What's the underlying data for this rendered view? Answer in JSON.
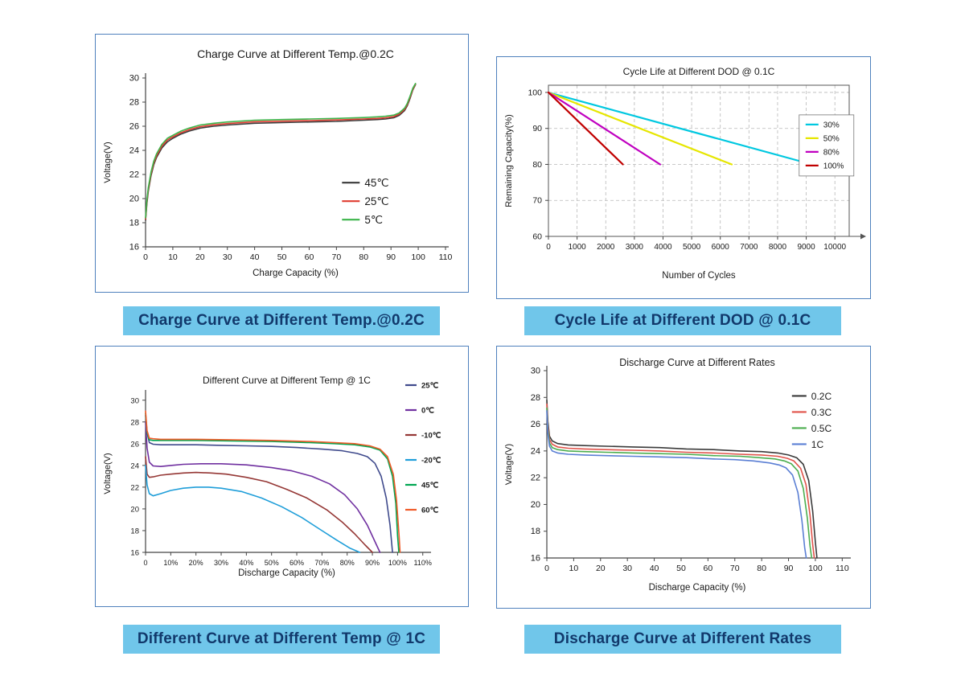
{
  "theme": {
    "caption_bg": "#70c6ea",
    "caption_text": "#11386b",
    "panel_border": "#4f81bd",
    "axis_color": "#444444",
    "grid_color": "#b8b8b8"
  },
  "captions": [
    {
      "text": "Charge Curve at Different Temp.@0.2C"
    },
    {
      "text": "Cycle Life at Different DOD @ 0.1C"
    },
    {
      "text": "Different Curve at Different Temp @ 1C"
    },
    {
      "text": "Discharge Curve at Different Rates"
    }
  ],
  "chart_data": [
    {
      "type": "line",
      "title": "Charge Curve at Different Temp.@0.2C",
      "xlabel": "Charge Capacity (%)",
      "ylabel": "Voltage(V)",
      "xlim": [
        0,
        110
      ],
      "ylim": [
        16,
        30
      ],
      "xticks": [
        0,
        10,
        20,
        30,
        40,
        50,
        60,
        70,
        80,
        90,
        100,
        110
      ],
      "xtick_labels": [
        "0",
        "10",
        "20",
        "30",
        "40",
        "50",
        "60",
        "70",
        "80",
        "90",
        "100",
        "110"
      ],
      "yticks": [
        16,
        18,
        20,
        22,
        24,
        26,
        28,
        30
      ],
      "ytick_labels": [
        "16",
        "18",
        "20",
        "22",
        "24",
        "26",
        "28",
        "30"
      ],
      "grid": false,
      "box": false,
      "x_arrow": false,
      "legend_position": "inside-middle-right",
      "series": [
        {
          "name": "45℃",
          "color": "#3a3a3a",
          "x": [
            0,
            0.5,
            1,
            2,
            3,
            4,
            6,
            8,
            10,
            13,
            16,
            20,
            25,
            30,
            40,
            50,
            60,
            70,
            80,
            85,
            88,
            91,
            93,
            95,
            96,
            97,
            98,
            99
          ],
          "y": [
            18.2,
            19.6,
            20.6,
            21.9,
            22.8,
            23.4,
            24.2,
            24.7,
            25.0,
            25.35,
            25.6,
            25.85,
            26.0,
            26.1,
            26.25,
            26.3,
            26.35,
            26.4,
            26.5,
            26.55,
            26.6,
            26.7,
            26.9,
            27.3,
            27.7,
            28.3,
            29.0,
            29.45
          ]
        },
        {
          "name": "25℃",
          "color": "#e03c31",
          "x": [
            0,
            0.5,
            1,
            2,
            3,
            4,
            6,
            8,
            10,
            13,
            16,
            20,
            25,
            30,
            40,
            50,
            60,
            70,
            80,
            85,
            88,
            91,
            93,
            95,
            96,
            97,
            98,
            99
          ],
          "y": [
            18.3,
            19.75,
            20.75,
            22.05,
            22.95,
            23.55,
            24.35,
            24.85,
            25.12,
            25.47,
            25.72,
            25.97,
            26.12,
            26.22,
            26.37,
            26.42,
            26.47,
            26.52,
            26.6,
            26.65,
            26.7,
            26.8,
            27.0,
            27.4,
            27.8,
            28.4,
            29.05,
            29.5
          ]
        },
        {
          "name": "5℃",
          "color": "#3cb44a",
          "x": [
            0,
            0.5,
            1,
            2,
            3,
            4,
            6,
            8,
            10,
            13,
            16,
            20,
            25,
            30,
            40,
            50,
            60,
            70,
            80,
            85,
            88,
            91,
            93,
            95,
            96,
            97,
            98,
            99
          ],
          "y": [
            18.4,
            19.9,
            20.9,
            22.2,
            23.1,
            23.7,
            24.5,
            25.0,
            25.25,
            25.6,
            25.85,
            26.1,
            26.25,
            26.35,
            26.5,
            26.55,
            26.6,
            26.65,
            26.72,
            26.78,
            26.83,
            26.92,
            27.1,
            27.5,
            27.9,
            28.5,
            29.15,
            29.55
          ]
        }
      ]
    },
    {
      "type": "line",
      "title": "Cycle Life at Different DOD @ 0.1C",
      "xlabel": "Number of Cycles",
      "ylabel": "Remaining Capacity(%)",
      "xlim": [
        0,
        10500
      ],
      "ylim": [
        60,
        102
      ],
      "xticks": [
        0,
        1000,
        2000,
        3000,
        4000,
        5000,
        6000,
        7000,
        8000,
        9000,
        10000
      ],
      "xtick_labels": [
        "0",
        "1000",
        "2000",
        "3000",
        "4000",
        "5000",
        "6000",
        "7000",
        "8000",
        "9000",
        "10000"
      ],
      "yticks": [
        60,
        70,
        80,
        90,
        100
      ],
      "ytick_labels": [
        "60",
        "70",
        "80",
        "90",
        "100"
      ],
      "grid": true,
      "box": true,
      "x_arrow": true,
      "legend_position": "inside-right-box",
      "series": [
        {
          "name": "30%",
          "color": "#00c8e0",
          "x": [
            0,
            9200
          ],
          "y": [
            100,
            80
          ]
        },
        {
          "name": "50%",
          "color": "#e6e600",
          "x": [
            0,
            6400
          ],
          "y": [
            100,
            80
          ]
        },
        {
          "name": "80%",
          "color": "#c000c0",
          "x": [
            0,
            3900
          ],
          "y": [
            100,
            80
          ]
        },
        {
          "name": "100%",
          "color": "#c00000",
          "x": [
            0,
            2600
          ],
          "y": [
            100,
            80
          ]
        }
      ]
    },
    {
      "type": "line",
      "title": "Different Curve at Different Temp @ 1C",
      "xlabel": "Discharge Capacity (%)",
      "ylabel": "Voltage(V)",
      "xlim": [
        0,
        112
      ],
      "ylim": [
        16,
        30.5
      ],
      "xticks": [
        0,
        10,
        20,
        30,
        40,
        50,
        60,
        70,
        80,
        90,
        100,
        110
      ],
      "xtick_labels": [
        "0",
        "10%",
        "20%",
        "30%",
        "40%",
        "50%",
        "60%",
        "70%",
        "80%",
        "90%",
        "100%",
        "110%"
      ],
      "yticks": [
        16,
        18,
        20,
        22,
        24,
        26,
        28,
        30
      ],
      "ytick_labels": [
        "16",
        "18",
        "20",
        "22",
        "24",
        "26",
        "28",
        "30"
      ],
      "grid": false,
      "box": false,
      "x_arrow": false,
      "legend_position": "outside-right",
      "series": [
        {
          "name": "25℃",
          "color": "#3f4a8c",
          "x": [
            0,
            0.6,
            1.5,
            3,
            6,
            10,
            20,
            30,
            40,
            50,
            60,
            70,
            78,
            84,
            88,
            91,
            93.5,
            95.5,
            97,
            98
          ],
          "y": [
            28.6,
            27.0,
            26.1,
            25.95,
            25.9,
            25.9,
            25.9,
            25.85,
            25.8,
            25.75,
            25.65,
            25.5,
            25.35,
            25.1,
            24.8,
            24.2,
            23.0,
            21.0,
            18.5,
            16.0
          ]
        },
        {
          "name": "0℃",
          "color": "#7030a0",
          "x": [
            0,
            0.6,
            1.5,
            3,
            6,
            10,
            15,
            22,
            30,
            40,
            50,
            58,
            66,
            73,
            79,
            84,
            88,
            91,
            93
          ],
          "y": [
            28.0,
            25.6,
            24.3,
            23.95,
            23.9,
            24.0,
            24.1,
            24.15,
            24.15,
            24.05,
            23.8,
            23.5,
            23.0,
            22.3,
            21.3,
            20.0,
            18.5,
            17.0,
            16.0
          ]
        },
        {
          "name": "-10℃",
          "color": "#953735",
          "x": [
            0,
            0.6,
            1.5,
            3,
            6,
            10,
            15,
            20,
            26,
            32,
            40,
            48,
            56,
            64,
            72,
            78,
            83,
            87,
            90
          ],
          "y": [
            24.8,
            23.2,
            22.9,
            22.95,
            23.1,
            23.2,
            23.3,
            23.35,
            23.3,
            23.2,
            22.9,
            22.5,
            21.8,
            21.0,
            19.9,
            18.8,
            17.7,
            16.7,
            16.0
          ]
        },
        {
          "name": "-20℃",
          "color": "#1f9ed9",
          "x": [
            0,
            0.6,
            1.5,
            3,
            6,
            10,
            15,
            20,
            25,
            30,
            38,
            46,
            54,
            62,
            70,
            76,
            81,
            85
          ],
          "y": [
            24.0,
            22.2,
            21.4,
            21.2,
            21.4,
            21.7,
            21.9,
            22.0,
            22.0,
            21.9,
            21.6,
            21.0,
            20.2,
            19.2,
            18.0,
            17.1,
            16.4,
            16.0
          ]
        },
        {
          "name": "45℃",
          "color": "#00a651",
          "x": [
            0,
            0.6,
            1.5,
            3,
            6,
            10,
            20,
            35,
            50,
            65,
            75,
            83,
            89,
            93,
            96,
            98,
            99.3,
            100,
            100.5
          ],
          "y": [
            28.8,
            27.0,
            26.35,
            26.3,
            26.3,
            26.3,
            26.3,
            26.25,
            26.2,
            26.1,
            26.0,
            25.9,
            25.7,
            25.4,
            24.6,
            23.0,
            20.5,
            17.5,
            16.0
          ]
        },
        {
          "name": "60℃",
          "color": "#f05a28",
          "x": [
            0,
            0.6,
            1.5,
            3,
            6,
            10,
            20,
            35,
            50,
            65,
            75,
            83,
            89,
            93,
            96,
            98.3,
            99.6,
            100.6,
            101
          ],
          "y": [
            29.0,
            27.2,
            26.5,
            26.45,
            26.4,
            26.4,
            26.4,
            26.35,
            26.3,
            26.2,
            26.1,
            26.0,
            25.8,
            25.5,
            24.8,
            23.2,
            20.8,
            17.5,
            16.0
          ]
        }
      ]
    },
    {
      "type": "line",
      "title": "Discharge Curve at Different Rates",
      "xlabel": "Discharge Capacity (%)",
      "ylabel": "Voltage(V)",
      "xlim": [
        0,
        112
      ],
      "ylim": [
        16,
        30
      ],
      "xticks": [
        0,
        10,
        20,
        30,
        40,
        50,
        60,
        70,
        80,
        90,
        100,
        110
      ],
      "xtick_labels": [
        "0",
        "10",
        "20",
        "30",
        "40",
        "50",
        "60",
        "70",
        "80",
        "90",
        "100",
        "110"
      ],
      "yticks": [
        16,
        18,
        20,
        22,
        24,
        26,
        28,
        30
      ],
      "ytick_labels": [
        "16",
        "18",
        "20",
        "22",
        "24",
        "26",
        "28",
        "30"
      ],
      "grid": false,
      "box": false,
      "x_arrow": false,
      "legend_position": "inside-top-right",
      "series": [
        {
          "name": "0.2C",
          "color": "#3a3a3a",
          "x": [
            0,
            0.4,
            1,
            2,
            4,
            8,
            14,
            22,
            32,
            42,
            52,
            62,
            72,
            80,
            86,
            90,
            93,
            95.5,
            97.5,
            99,
            100,
            100.6
          ],
          "y": [
            27.8,
            26.2,
            25.1,
            24.75,
            24.55,
            24.45,
            24.4,
            24.35,
            24.3,
            24.25,
            24.15,
            24.1,
            24.0,
            23.95,
            23.85,
            23.7,
            23.5,
            23.0,
            21.8,
            19.5,
            17.2,
            16.0
          ]
        },
        {
          "name": "0.3C",
          "color": "#e0534a",
          "x": [
            0,
            0.4,
            1,
            2,
            4,
            8,
            14,
            22,
            32,
            42,
            52,
            62,
            72,
            80,
            86,
            89.5,
            92,
            94.5,
            96.5,
            98,
            99,
            99.6
          ],
          "y": [
            27.5,
            25.9,
            24.85,
            24.5,
            24.3,
            24.2,
            24.15,
            24.1,
            24.05,
            24.0,
            23.9,
            23.85,
            23.75,
            23.7,
            23.6,
            23.45,
            23.25,
            22.7,
            21.5,
            19.2,
            17.0,
            16.0
          ]
        },
        {
          "name": "0.5C",
          "color": "#4cae4f",
          "x": [
            0,
            0.4,
            1,
            2,
            4,
            8,
            14,
            22,
            32,
            42,
            52,
            62,
            72,
            79,
            85,
            88.5,
            91,
            93.5,
            95.5,
            97,
            98,
            98.6
          ],
          "y": [
            27.2,
            25.6,
            24.6,
            24.25,
            24.1,
            24.0,
            23.95,
            23.9,
            23.85,
            23.8,
            23.75,
            23.65,
            23.6,
            23.5,
            23.4,
            23.25,
            23.05,
            22.5,
            21.2,
            19.0,
            16.9,
            16.0
          ]
        },
        {
          "name": "1C",
          "color": "#5b7fd4",
          "x": [
            0,
            0.4,
            1,
            2,
            4,
            8,
            14,
            22,
            32,
            42,
            52,
            62,
            70,
            77,
            83,
            86.5,
            89,
            91.5,
            93.5,
            95,
            96,
            96.6
          ],
          "y": [
            27.0,
            25.3,
            24.35,
            24.0,
            23.85,
            23.75,
            23.7,
            23.65,
            23.6,
            23.55,
            23.5,
            23.4,
            23.35,
            23.25,
            23.1,
            22.95,
            22.75,
            22.2,
            20.9,
            18.8,
            16.8,
            16.0
          ]
        }
      ]
    }
  ]
}
